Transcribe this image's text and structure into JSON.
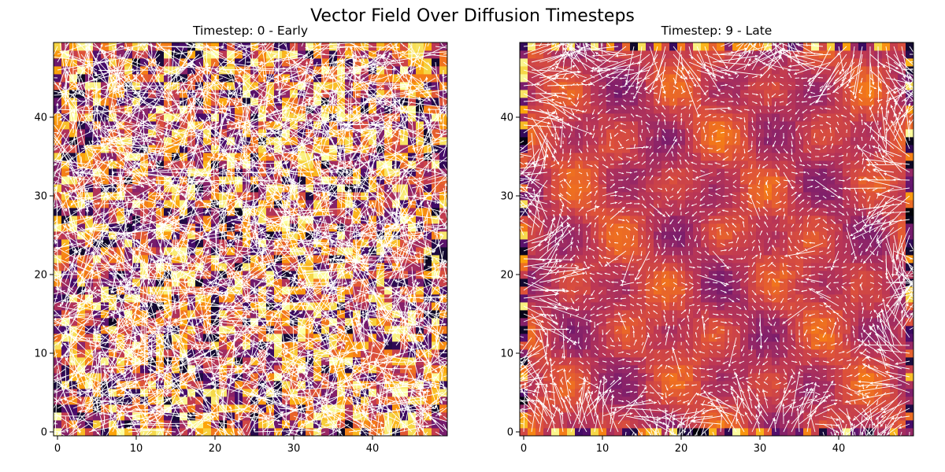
{
  "figure": {
    "suptitle": "Vector Field Over Diffusion Timesteps"
  },
  "colors": {
    "colormap": "inferno",
    "arrow_color": "#ffffff",
    "background": "#ffffff"
  },
  "chart_data": [
    {
      "type": "heatmap",
      "overlay": "quiver",
      "title": "Timestep: 0 - Early",
      "timestep": 0,
      "grid_size": [
        50,
        50
      ],
      "xlabel": "",
      "ylabel": "",
      "xlim": [
        -0.5,
        49.5
      ],
      "ylim": [
        -0.5,
        49.5
      ],
      "xticks": [
        0,
        10,
        20,
        30,
        40
      ],
      "yticks": [
        0,
        10,
        20,
        30,
        40
      ],
      "colormap": "inferno",
      "field_description": "random noise vector field; magnitudes uniformly high, directions random",
      "color_range": [
        0.0,
        1.0
      ],
      "grid": false
    },
    {
      "type": "heatmap",
      "overlay": "quiver",
      "title": "Timestep: 9 - Late",
      "timestep": 9,
      "grid_size": [
        50,
        50
      ],
      "xlabel": "",
      "ylabel": "",
      "xlim": [
        -0.5,
        49.5
      ],
      "ylim": [
        -0.5,
        49.5
      ],
      "xticks": [
        0,
        10,
        20,
        30,
        40
      ],
      "yticks": [
        0,
        10,
        20,
        30,
        40
      ],
      "colormap": "inferno",
      "field_description": "smoothed periodic vector field with vortices; long arrows near borders",
      "color_range": [
        0.3,
        0.75
      ],
      "grid": false
    }
  ]
}
